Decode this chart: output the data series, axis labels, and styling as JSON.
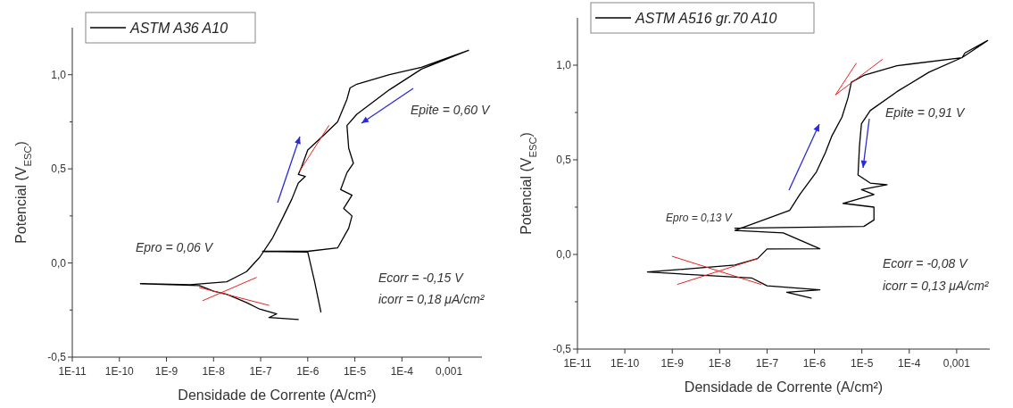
{
  "chart_data": [
    {
      "type": "line",
      "xlabel": "Densidade de Corrente (A/cm²)",
      "ylabel": "Potencial (V$_{ESC}$)",
      "log": "x",
      "legend": "top left",
      "xlim": [
        1e-11,
        0.005
      ],
      "ylim": [
        -0.5,
        1.25
      ],
      "xticks": [
        {
          "value": 1e-11,
          "label": "1E-11"
        },
        {
          "value": 1e-10,
          "label": "1E-10"
        },
        {
          "value": 1e-09,
          "label": "1E-9"
        },
        {
          "value": 1e-08,
          "label": "1E-8"
        },
        {
          "value": 1e-07,
          "label": "1E-7"
        },
        {
          "value": 1e-06,
          "label": "1E-6"
        },
        {
          "value": 1e-05,
          "label": "1E-5"
        },
        {
          "value": 0.0001,
          "label": "1E-4"
        },
        {
          "value": 0.001,
          "label": "0,001"
        }
      ],
      "yticks": [
        {
          "value": -0.5,
          "label": "-0,5"
        },
        {
          "value": -0.25,
          "label": null
        },
        {
          "value": 0,
          "label": "0,0"
        },
        {
          "value": 0.25,
          "label": null
        },
        {
          "value": 0.5,
          "label": "0,5"
        },
        {
          "value": 0.75,
          "label": null
        },
        {
          "value": 1.0,
          "label": "1,0"
        }
      ],
      "annotations": [
        "Epro = 0,06 V",
        "Epite = 0,60 V",
        "Ecorr = -0,15 V",
        "icorr = 0,18 μA/cm²"
      ],
      "series": [
        {
          "name": "ASTM A36 A10",
          "color": "#000000",
          "x": [
            6.3e-07,
            1.5e-07,
            2.2e-07,
            9.5e-08,
            5e-08,
            1.9e-08,
            1e-08,
            5e-09,
            2.8e-10,
            3.2e-09,
            1.9e-08,
            5e-08,
            9.5e-08,
            1.8e-07,
            2.9e-07,
            4.6e-07,
            6.3e-07,
            8.9e-07,
            6.3e-07,
            7.4e-07,
            1e-06,
            2.2e-06,
            4.3e-06,
            6.8e-06,
            7.9e-06,
            1.1e-05,
            5.4e-05,
            0.00026,
            0.0026,
            0.00026,
            5.4e-05,
            1.1e-05,
            6.8e-06,
            7.4e-06,
            9.3e-06,
            6.8e-06,
            5e-06,
            8.7e-06,
            5.8e-06,
            8.7e-06,
            7.4e-06,
            4.3e-06,
            1e-06,
            1.1e-07,
            1e-06,
            1.4e-06,
            1.9e-06
          ],
          "values": [
            -0.3,
            -0.29,
            -0.27,
            -0.245,
            -0.21,
            -0.166,
            -0.15,
            -0.12,
            -0.11,
            -0.115,
            -0.1,
            -0.046,
            0.03,
            0.134,
            0.237,
            0.34,
            0.425,
            0.46,
            0.47,
            0.51,
            0.6,
            0.68,
            0.75,
            0.87,
            0.93,
            0.95,
            1.0,
            1.04,
            1.13,
            1.03,
            0.92,
            0.79,
            0.73,
            0.61,
            0.53,
            0.48,
            0.39,
            0.36,
            0.29,
            0.25,
            0.185,
            0.08,
            0.062,
            0.062,
            0.058,
            -0.1,
            -0.26
          ]
        },
        {
          "type": "line",
          "color": "#e8231f",
          "x": [
            5e-09,
            1.5e-07
          ],
          "values": [
            -0.13,
            -0.225
          ]
        },
        {
          "type": "line",
          "color": "#e8231f",
          "x": [
            5.9e-09,
            8.1e-08
          ],
          "values": [
            -0.2,
            -0.077
          ]
        },
        {
          "type": "line",
          "color": "#e8231f",
          "x": [
            6.8e-07,
            2.8e-06
          ],
          "values": [
            0.49,
            0.73
          ]
        }
      ]
    },
    {
      "type": "line",
      "xlabel": "Densidade de Corrente (A/cm²)",
      "ylabel": "Potencial (V$_{ESC}$)",
      "log": "x",
      "legend": "top left",
      "xlim": [
        1e-11,
        0.005
      ],
      "ylim": [
        -0.5,
        1.25
      ],
      "xticks": [
        {
          "value": 1e-11,
          "label": "1E-11"
        },
        {
          "value": 1e-10,
          "label": "1E-10"
        },
        {
          "value": 1e-09,
          "label": "1E-9"
        },
        {
          "value": 1e-08,
          "label": "1E-8"
        },
        {
          "value": 1e-07,
          "label": "1E-7"
        },
        {
          "value": 1e-06,
          "label": "1E-6"
        },
        {
          "value": 1e-05,
          "label": "1E-5"
        },
        {
          "value": 0.0001,
          "label": "1E-4"
        },
        {
          "value": 0.001,
          "label": "0,001"
        }
      ],
      "yticks": [
        {
          "value": -0.5,
          "label": "-0,5"
        },
        {
          "value": -0.25,
          "label": null
        },
        {
          "value": 0,
          "label": "0,0"
        },
        {
          "value": 0.25,
          "label": null
        },
        {
          "value": 0.5,
          "label": "0,5"
        },
        {
          "value": 0.75,
          "label": null
        },
        {
          "value": 1.0,
          "label": "1,0"
        }
      ],
      "annotations": [
        "Epro = 0,13 V",
        "Epite = 0,91 V",
        "Ecorr = -0,08 V",
        "icorr = 0,13 μA/cm²"
      ],
      "series": [
        {
          "name": "ASTM A516 gr.70 A10",
          "color": "#000000",
          "x": [
            8.5e-07,
            2.6e-07,
            1.3e-06,
            1e-07,
            4.7e-08,
            3e-10,
            2.1e-08,
            6.3e-08,
            1e-07,
            1.3e-06,
            2.2e-07,
            2.1e-08,
            3e-07,
            4.9e-07,
            1.1e-06,
            1.7e-06,
            2.3e-06,
            3.8e-06,
            5.1e-06,
            6e-06,
            1.1e-05,
            5.5e-05,
            0.0013,
            0.0045,
            0.0015,
            0.0013,
            0.00026,
            5.5e-05,
            1.5e-05,
            9.8e-06,
            8.9e-06,
            8.3e-06,
            1.5e-05,
            3.4e-05,
            9.8e-06,
            1.8e-05,
            4e-06,
            1.8e-05,
            1.8e-05,
            1.1e-05,
            2.1e-08
          ],
          "values": [
            -0.23,
            -0.2,
            -0.187,
            -0.166,
            -0.124,
            -0.093,
            -0.056,
            -0.022,
            0.029,
            0.03,
            0.114,
            0.127,
            0.233,
            0.317,
            0.436,
            0.538,
            0.623,
            0.725,
            0.827,
            0.91,
            0.946,
            0.997,
            1.04,
            1.13,
            1.065,
            1.04,
            0.963,
            0.86,
            0.76,
            0.69,
            0.572,
            0.42,
            0.377,
            0.368,
            0.343,
            0.317,
            0.27,
            0.25,
            0.182,
            0.148,
            0.139
          ]
        },
        {
          "type": "line",
          "color": "#e8231f",
          "x": [
            1e-09,
            7.4e-08
          ],
          "values": [
            -0.01,
            -0.158
          ]
        },
        {
          "type": "line",
          "color": "#e8231f",
          "x": [
            1.3e-09,
            6.3e-08
          ],
          "values": [
            -0.158,
            -0.022
          ]
        },
        {
          "type": "line",
          "color": "#e8231f",
          "x": [
            2.8e-06,
            2.7e-05
          ],
          "values": [
            0.844,
            1.03
          ]
        },
        {
          "type": "line",
          "color": "#e8231f",
          "x": [
            7.6e-06,
            2.8e-06
          ],
          "values": [
            1.01,
            0.844
          ]
        }
      ]
    }
  ]
}
